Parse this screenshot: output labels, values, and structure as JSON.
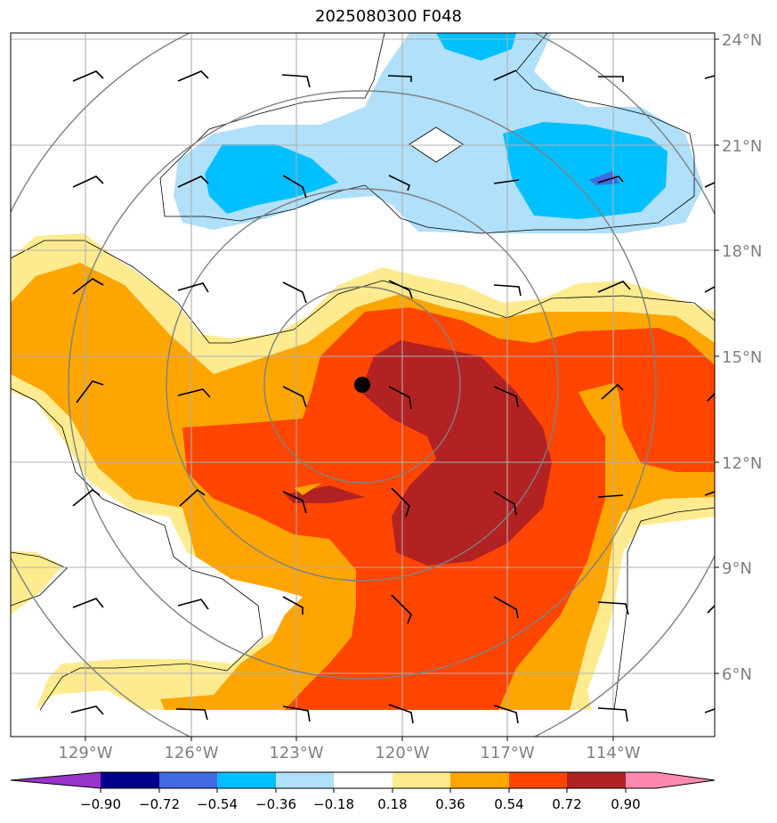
{
  "title": "2025080300 F048",
  "lat_labels": [
    "24°N",
    "21°N",
    "18°N",
    "15°N",
    "12°N",
    "9°N",
    "6°N"
  ],
  "lon_labels": [
    "129°W",
    "126°W",
    "123°W",
    "120°W",
    "117°W",
    "114°W"
  ],
  "colorbar": {
    "tick_labels": [
      "−0.90",
      "−0.72",
      "−0.54",
      "−0.36",
      "−0.18",
      "0.18",
      "0.36",
      "0.54",
      "0.72",
      "0.90"
    ],
    "colors": [
      "#9932cc",
      "#00008b",
      "#4169e1",
      "#00bfff",
      "#b0e0fa",
      "#ffffff",
      "#ffeb8f",
      "#ffa500",
      "#ff4500",
      "#b22222",
      "#ff88b0"
    ]
  },
  "storm_center": {
    "lon": -121.0,
    "lat": 14.2
  },
  "map_extent": {
    "lon": [
      -131.2,
      -111.2
    ],
    "lat": [
      4.2,
      24.2
    ]
  }
}
